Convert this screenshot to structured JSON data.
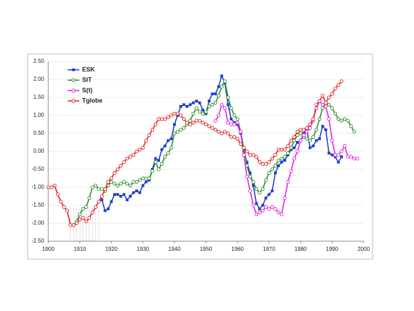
{
  "chart_data": {
    "type": "line",
    "xlim": [
      1900,
      2000
    ],
    "xticks": [
      1900,
      1910,
      1920,
      1930,
      1940,
      1950,
      1960,
      1970,
      1980,
      1990,
      2000
    ],
    "ylim": [
      -2.5,
      2.5
    ],
    "yticks": [
      {
        "value": -2.5,
        "label": "-2.50"
      },
      {
        "value": -2,
        "label": "-2.00"
      },
      {
        "value": -1.5,
        "label": "-1.50"
      },
      {
        "value": -1,
        "label": "-1.00"
      },
      {
        "value": -0.5,
        "label": "-0.50"
      },
      {
        "value": 0,
        "label": "0.00"
      },
      {
        "value": 0.5,
        "label": "0.50"
      },
      {
        "value": 1,
        "label": "1.00"
      },
      {
        "value": 1.5,
        "label": "1.50"
      },
      {
        "value": 2,
        "label": "2.00"
      },
      {
        "value": 2.5,
        "label": "2.50"
      }
    ],
    "grid": true,
    "legend": "upper left",
    "series": [
      {
        "name": "ESK",
        "color": "#1f3fd0",
        "marker": "square",
        "x": [
          1917,
          1918,
          1919,
          1920,
          1921,
          1922,
          1923,
          1924,
          1925,
          1926,
          1927,
          1928,
          1929,
          1930,
          1931,
          1932,
          1933,
          1934,
          1935,
          1936,
          1937,
          1938,
          1939,
          1940,
          1941,
          1942,
          1943,
          1944,
          1945,
          1946,
          1947,
          1948,
          1949,
          1950,
          1951,
          1952,
          1953,
          1954,
          1955,
          1956,
          1957,
          1958,
          1959,
          1960,
          1961,
          1962,
          1963,
          1964,
          1965,
          1966,
          1967,
          1968,
          1969,
          1970,
          1971,
          1972,
          1973,
          1974,
          1975,
          1976,
          1977,
          1978,
          1979,
          1980,
          1981,
          1982,
          1983,
          1984,
          1985,
          1986,
          1987,
          1988,
          1989,
          1990,
          1991,
          1992,
          1993
        ],
        "values": [
          -1.35,
          -1.65,
          -1.6,
          -1.4,
          -1.2,
          -1.2,
          -1.25,
          -1.2,
          -1.35,
          -1.25,
          -1.15,
          -1.1,
          -1.15,
          -0.95,
          -0.85,
          -0.8,
          -0.5,
          -0.2,
          -0.25,
          0.05,
          0.15,
          0.3,
          0.35,
          0.75,
          1.0,
          1.25,
          1.3,
          1.25,
          1.3,
          1.35,
          1.4,
          1.35,
          1.15,
          1.05,
          1.4,
          1.6,
          1.6,
          1.8,
          2.1,
          1.9,
          1.3,
          0.9,
          0.8,
          0.75,
          0.5,
          0.0,
          -0.3,
          -0.6,
          -0.95,
          -1.45,
          -1.6,
          -1.5,
          -1.3,
          -1.2,
          -1.1,
          -0.6,
          -0.4,
          -0.3,
          -0.25,
          -0.1,
          0.05,
          0.1,
          0.25,
          0.3,
          0.5,
          0.6,
          0.1,
          0.15,
          0.3,
          0.35,
          0.7,
          0.6,
          -0.05,
          -0.1,
          -0.15,
          -0.3,
          -0.15
        ]
      },
      {
        "name": "SIT",
        "color": "#2a8a2a",
        "marker": "circle",
        "x": [
          1908,
          1909,
          1910,
          1911,
          1912,
          1913,
          1914,
          1915,
          1916,
          1917,
          1918,
          1919,
          1920,
          1921,
          1922,
          1923,
          1924,
          1925,
          1926,
          1927,
          1928,
          1929,
          1930,
          1931,
          1932,
          1933,
          1934,
          1935,
          1936,
          1937,
          1938,
          1939,
          1940,
          1941,
          1942,
          1943,
          1944,
          1945,
          1946,
          1947,
          1948,
          1949,
          1950,
          1951,
          1952,
          1953,
          1954,
          1955,
          1956,
          1957,
          1958,
          1959,
          1960,
          1961,
          1962,
          1963,
          1964,
          1965,
          1966,
          1967,
          1968,
          1969,
          1970,
          1971,
          1972,
          1973,
          1974,
          1975,
          1976,
          1977,
          1978,
          1979,
          1980,
          1981,
          1982,
          1983,
          1984,
          1985,
          1986,
          1987,
          1988,
          1989,
          1990,
          1991,
          1992,
          1993,
          1994,
          1995,
          1996,
          1997
        ],
        "values": [
          -2.05,
          -1.95,
          -1.75,
          -1.6,
          -1.55,
          -1.3,
          -1.0,
          -0.95,
          -1.05,
          -1.05,
          -1.1,
          -0.95,
          -0.85,
          -0.9,
          -0.95,
          -0.9,
          -0.85,
          -0.9,
          -0.95,
          -0.85,
          -0.85,
          -0.8,
          -0.75,
          -0.75,
          -0.75,
          -0.55,
          -0.3,
          -0.5,
          -0.35,
          -0.15,
          -0.05,
          0.1,
          0.5,
          0.55,
          0.6,
          0.65,
          0.75,
          0.85,
          1.05,
          1.2,
          1.1,
          1.05,
          1.1,
          1.25,
          1.3,
          1.35,
          1.55,
          1.8,
          1.95,
          1.5,
          1.2,
          1.0,
          0.9,
          0.55,
          0.1,
          -0.4,
          -0.7,
          -0.85,
          -1.05,
          -1.15,
          -1.05,
          -0.8,
          -0.6,
          -0.5,
          -0.4,
          -0.25,
          -0.2,
          -0.15,
          -0.05,
          0.1,
          0.3,
          0.45,
          0.5,
          0.4,
          0.35,
          0.3,
          0.4,
          0.6,
          0.9,
          1.2,
          1.3,
          1.3,
          1.2,
          1.05,
          0.9,
          0.85,
          0.9,
          0.85,
          0.7,
          0.55
        ]
      },
      {
        "name": "S(t)",
        "color": "#e020e0",
        "marker": "circle",
        "x": [
          1953,
          1954,
          1955,
          1956,
          1957,
          1958,
          1959,
          1960,
          1961,
          1962,
          1963,
          1964,
          1965,
          1966,
          1967,
          1968,
          1969,
          1970,
          1971,
          1972,
          1973,
          1974,
          1975,
          1976,
          1977,
          1978,
          1979,
          1980,
          1981,
          1982,
          1983,
          1984,
          1985,
          1986,
          1987,
          1988,
          1989,
          1990,
          1991,
          1992,
          1993,
          1994,
          1995,
          1996,
          1997,
          1998
        ],
        "values": [
          0.85,
          1.0,
          1.3,
          1.2,
          0.8,
          0.75,
          0.75,
          0.8,
          0.55,
          -0.1,
          -0.7,
          -1.1,
          -1.5,
          -1.75,
          -1.7,
          -1.65,
          -1.55,
          -1.6,
          -1.55,
          -1.6,
          -1.7,
          -1.75,
          -1.3,
          -0.85,
          -0.55,
          -0.2,
          0.0,
          0.3,
          0.45,
          0.55,
          0.65,
          0.85,
          1.3,
          1.4,
          1.3,
          1.25,
          0.9,
          0.3,
          -0.1,
          -0.1,
          0.0,
          0.15,
          -0.15,
          -0.15,
          -0.2,
          -0.2
        ]
      },
      {
        "name": "Tglobe",
        "color": "#e02020",
        "marker": "circle",
        "x": [
          1900,
          1901,
          1902,
          1903,
          1904,
          1905,
          1906,
          1907,
          1908,
          1909,
          1910,
          1911,
          1912,
          1913,
          1914,
          1915,
          1916,
          1917,
          1918,
          1919,
          1920,
          1921,
          1922,
          1923,
          1924,
          1925,
          1926,
          1927,
          1928,
          1929,
          1930,
          1931,
          1932,
          1933,
          1934,
          1935,
          1936,
          1937,
          1938,
          1939,
          1940,
          1941,
          1942,
          1943,
          1944,
          1945,
          1946,
          1947,
          1948,
          1949,
          1950,
          1951,
          1952,
          1953,
          1954,
          1955,
          1956,
          1957,
          1958,
          1959,
          1960,
          1961,
          1962,
          1963,
          1964,
          1965,
          1966,
          1967,
          1968,
          1969,
          1970,
          1971,
          1972,
          1973,
          1974,
          1975,
          1976,
          1977,
          1978,
          1979,
          1980,
          1981,
          1982,
          1983,
          1984,
          1985,
          1986,
          1987,
          1988,
          1989,
          1990,
          1991,
          1992,
          1993
        ],
        "values": [
          -1.0,
          -1.0,
          -0.95,
          -1.2,
          -1.4,
          -1.55,
          -1.65,
          -2.05,
          -2.05,
          -2.0,
          -1.9,
          -1.85,
          -1.95,
          -1.85,
          -1.7,
          -1.55,
          -1.4,
          -1.25,
          -1.05,
          -0.85,
          -0.75,
          -0.6,
          -0.5,
          -0.4,
          -0.3,
          -0.2,
          -0.15,
          -0.1,
          0.0,
          0.05,
          0.1,
          0.3,
          0.45,
          0.6,
          0.75,
          0.9,
          0.9,
          0.9,
          0.95,
          1.0,
          1.05,
          1.05,
          1.0,
          0.9,
          0.8,
          0.75,
          0.8,
          0.85,
          0.85,
          0.8,
          0.75,
          0.7,
          0.65,
          0.6,
          0.55,
          0.5,
          0.55,
          0.5,
          0.4,
          0.4,
          0.35,
          0.2,
          0.1,
          0.0,
          -0.1,
          -0.1,
          -0.15,
          -0.3,
          -0.35,
          -0.35,
          -0.3,
          -0.2,
          -0.1,
          0.05,
          0.05,
          0.05,
          0.15,
          0.3,
          0.4,
          0.55,
          0.6,
          0.6,
          0.65,
          0.75,
          0.9,
          1.2,
          1.4,
          1.55,
          1.35,
          1.5,
          1.6,
          1.75,
          1.85,
          1.95
        ]
      }
    ]
  }
}
